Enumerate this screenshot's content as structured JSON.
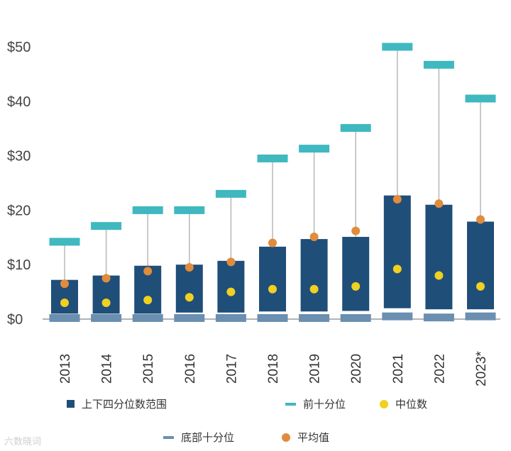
{
  "chart_data": {
    "type": "box",
    "categories": [
      "2013",
      "2014",
      "2015",
      "2016",
      "2017",
      "2018",
      "2019",
      "2020",
      "2021",
      "2022",
      "2023*"
    ],
    "y_tick_labels": [
      "$0",
      "$10",
      "$20",
      "$30",
      "$40",
      "$50"
    ],
    "y_ticks": [
      0,
      10,
      20,
      30,
      40,
      50
    ],
    "ylim": [
      0,
      52
    ],
    "series": [
      {
        "name": "上下四分位数范围",
        "q1": [
          1,
          1,
          1,
          1.2,
          1.2,
          1.4,
          1.4,
          1.5,
          2,
          1.8,
          1.8
        ],
        "q3": [
          7.2,
          8,
          9.8,
          10,
          10.7,
          13.3,
          14.7,
          15.1,
          22.7,
          21,
          17.9
        ]
      },
      {
        "name": "前十分位",
        "values": [
          14.2,
          17.1,
          20,
          20,
          23,
          29.5,
          31.3,
          35.1,
          50,
          46.7,
          40.5
        ]
      },
      {
        "name": "中位数",
        "values": [
          3,
          3,
          3.5,
          4,
          5,
          5.5,
          5.5,
          6,
          9.2,
          8,
          6
        ]
      },
      {
        "name": "底部十分位",
        "values": [
          0.2,
          0.2,
          0.2,
          0.2,
          0.2,
          0.2,
          0.2,
          0.2,
          0.5,
          0.3,
          0.5
        ]
      },
      {
        "name": "平均值",
        "values": [
          6.5,
          7.5,
          8.8,
          9.5,
          10.5,
          14,
          15.1,
          16.2,
          22,
          21.2,
          18.3
        ]
      }
    ],
    "colors": {
      "iqr": "#1f4e79",
      "top_decile": "#3fb8c0",
      "bottom_decile": "#6a8fb0",
      "median": "#f0d020",
      "mean": "#e08c3c",
      "whisker": "#b8b8b8",
      "axis": "#9a9a9a"
    }
  },
  "legend": {
    "iqr": "上下四分位数范围",
    "top": "前十分位",
    "median": "中位数",
    "bottom": "底部十分位",
    "mean": "平均值"
  },
  "watermark": "六数晓词"
}
